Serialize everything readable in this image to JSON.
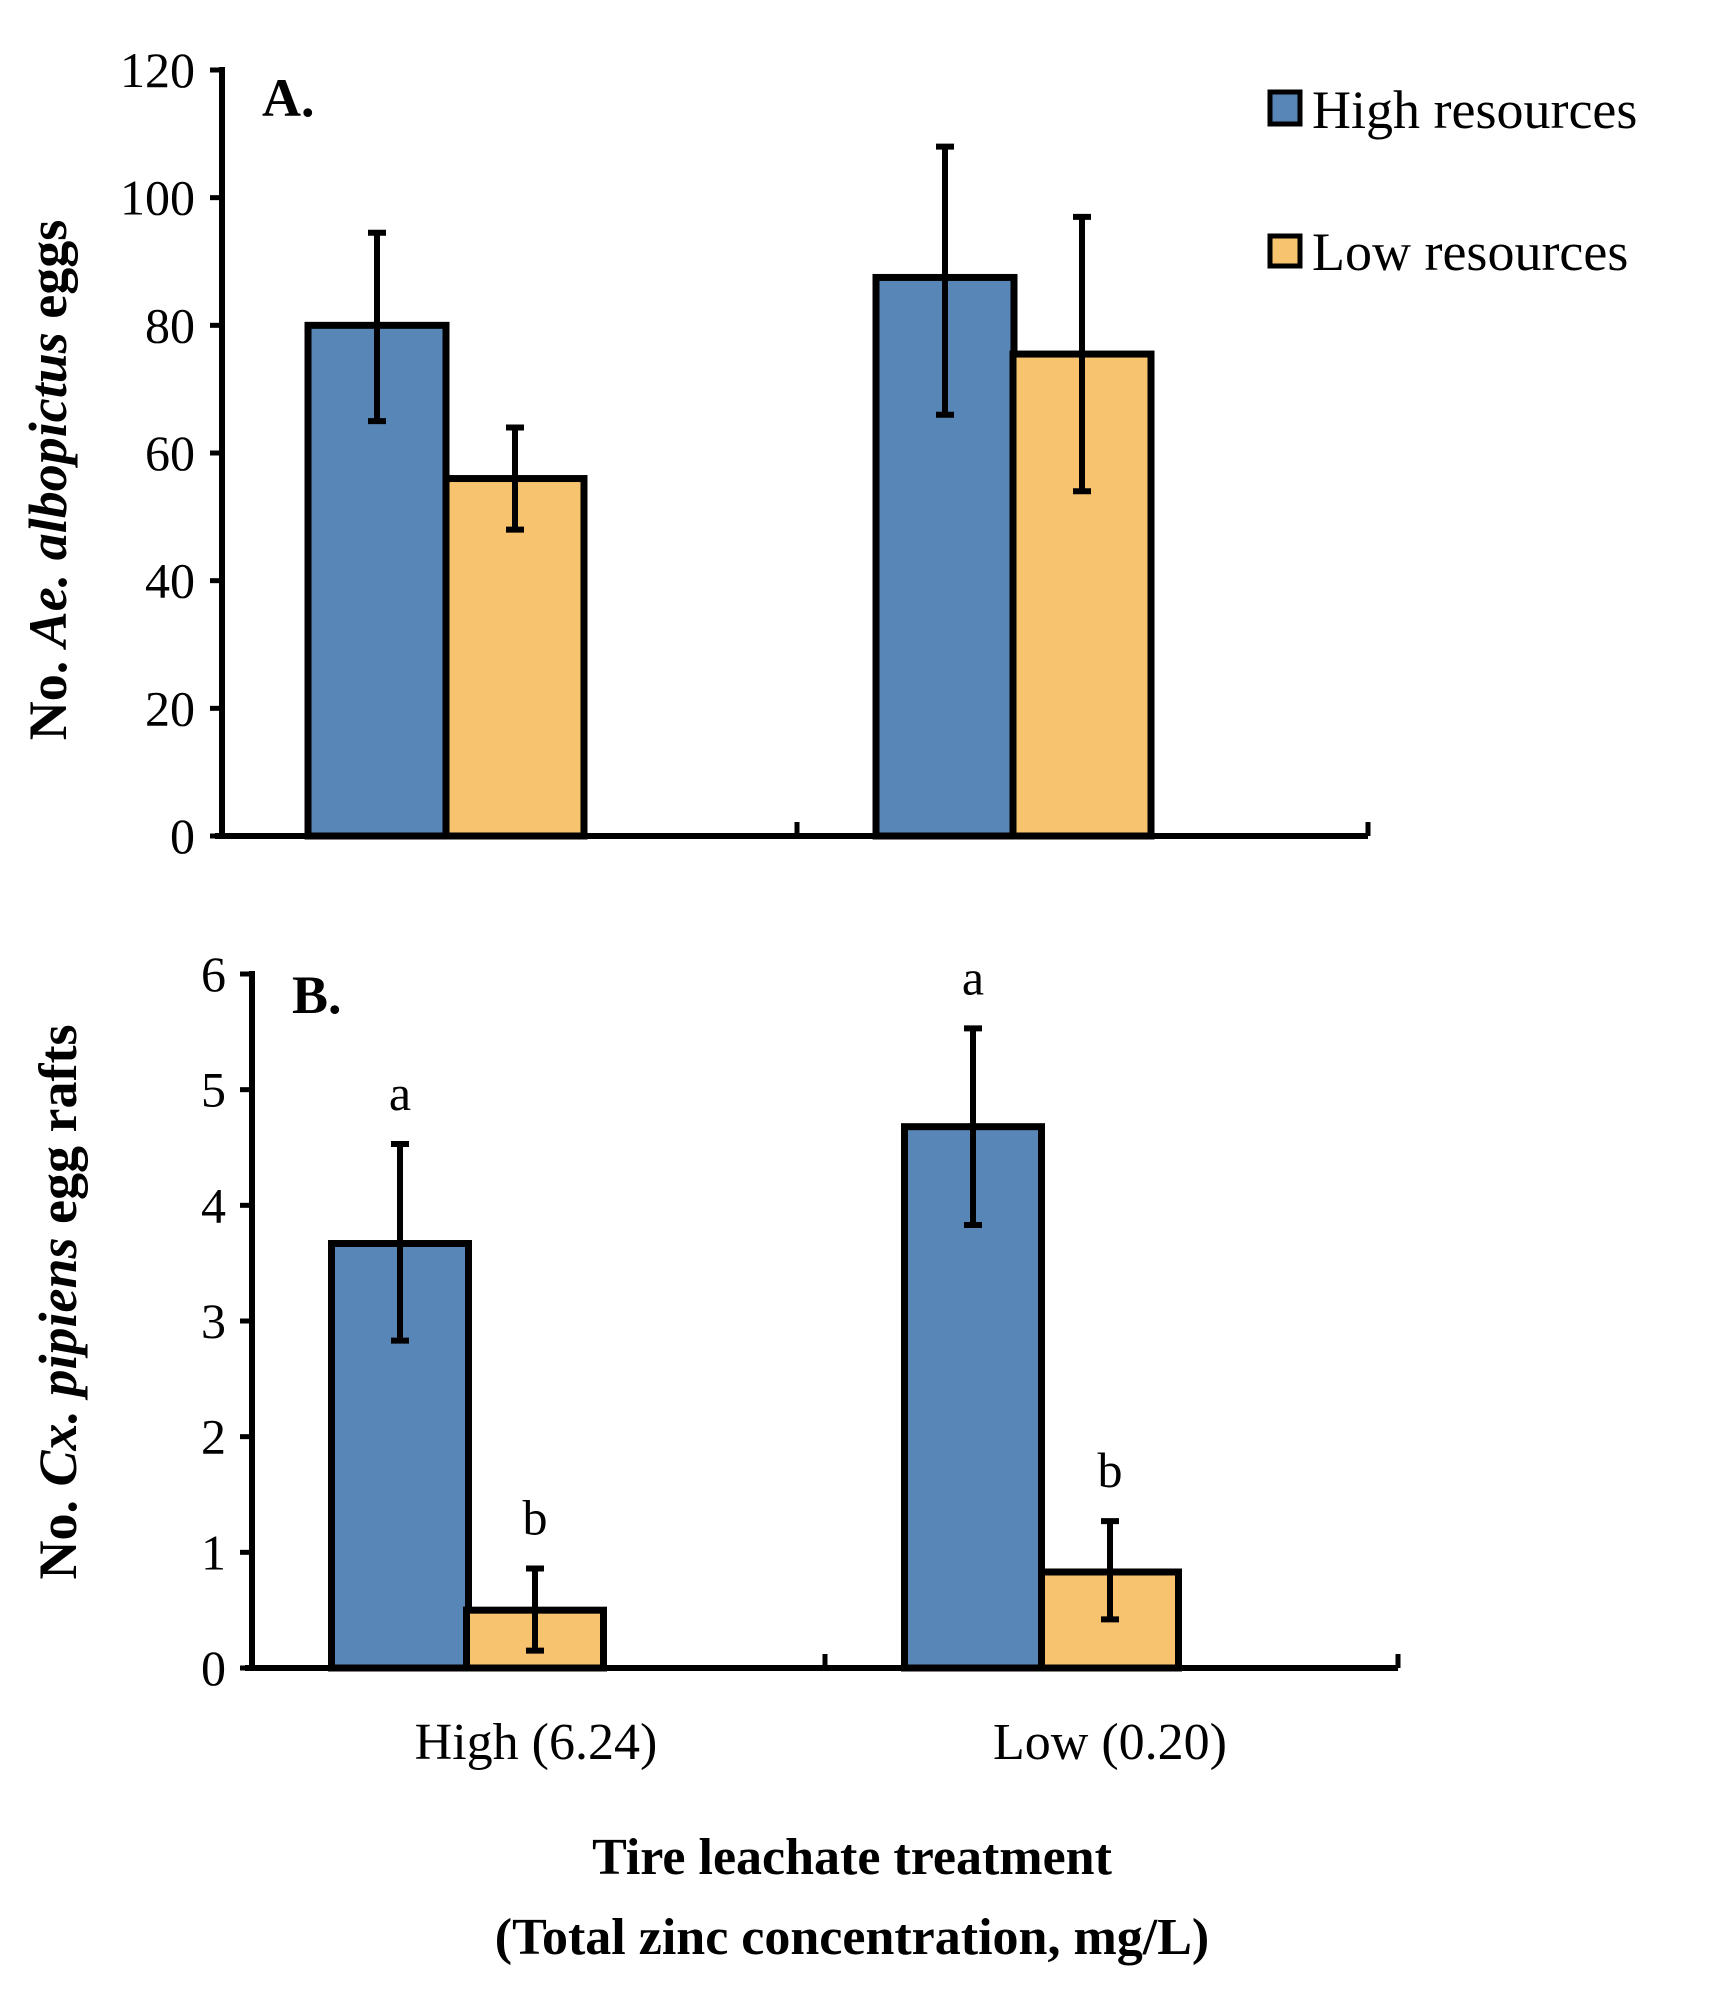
{
  "legend": [
    {
      "name": "High resources",
      "color": "#5886b6"
    },
    {
      "name": "Low resources",
      "color": "#f8c36e"
    }
  ],
  "x_title_line1": "Tire leachate treatment",
  "x_title_line2": "(Total zinc concentration, mg/L)",
  "categories": [
    "High (6.24)",
    "Low (0.20)"
  ],
  "chart_data": [
    {
      "type": "bar",
      "panel": "A.",
      "ylabel_prefix": "No. ",
      "ylabel_species": "Ae. albopictus",
      "ylabel_suffix": " eggs",
      "ylim": [
        0,
        120
      ],
      "yticks": [
        0,
        20,
        40,
        60,
        80,
        100,
        120
      ],
      "categories": [
        "High (6.24)",
        "Low (0.20)"
      ],
      "series": [
        {
          "name": "High resources",
          "values": [
            80,
            87.5
          ],
          "err_low": [
            65,
            66
          ],
          "err_high": [
            94.5,
            108
          ],
          "letters": [
            "",
            ""
          ]
        },
        {
          "name": "Low resources",
          "values": [
            56,
            75.5
          ],
          "err_low": [
            48,
            54
          ],
          "err_high": [
            64,
            97
          ],
          "letters": [
            "",
            ""
          ]
        }
      ]
    },
    {
      "type": "bar",
      "panel": "B.",
      "ylabel_prefix": "No. ",
      "ylabel_species": "Cx. pipiens",
      "ylabel_suffix": " egg rafts",
      "ylim": [
        0,
        6
      ],
      "yticks": [
        0,
        1,
        2,
        3,
        4,
        5,
        6
      ],
      "categories": [
        "High (6.24)",
        "Low (0.20)"
      ],
      "series": [
        {
          "name": "High resources",
          "values": [
            3.67,
            4.68
          ],
          "err_low": [
            2.83,
            3.83
          ],
          "err_high": [
            4.53,
            5.53
          ],
          "letters": [
            "a",
            "a"
          ]
        },
        {
          "name": "Low resources",
          "values": [
            0.5,
            0.83
          ],
          "err_low": [
            0.15,
            0.42
          ],
          "err_high": [
            0.86,
            1.27
          ],
          "letters": [
            "b",
            "b"
          ]
        }
      ]
    }
  ]
}
